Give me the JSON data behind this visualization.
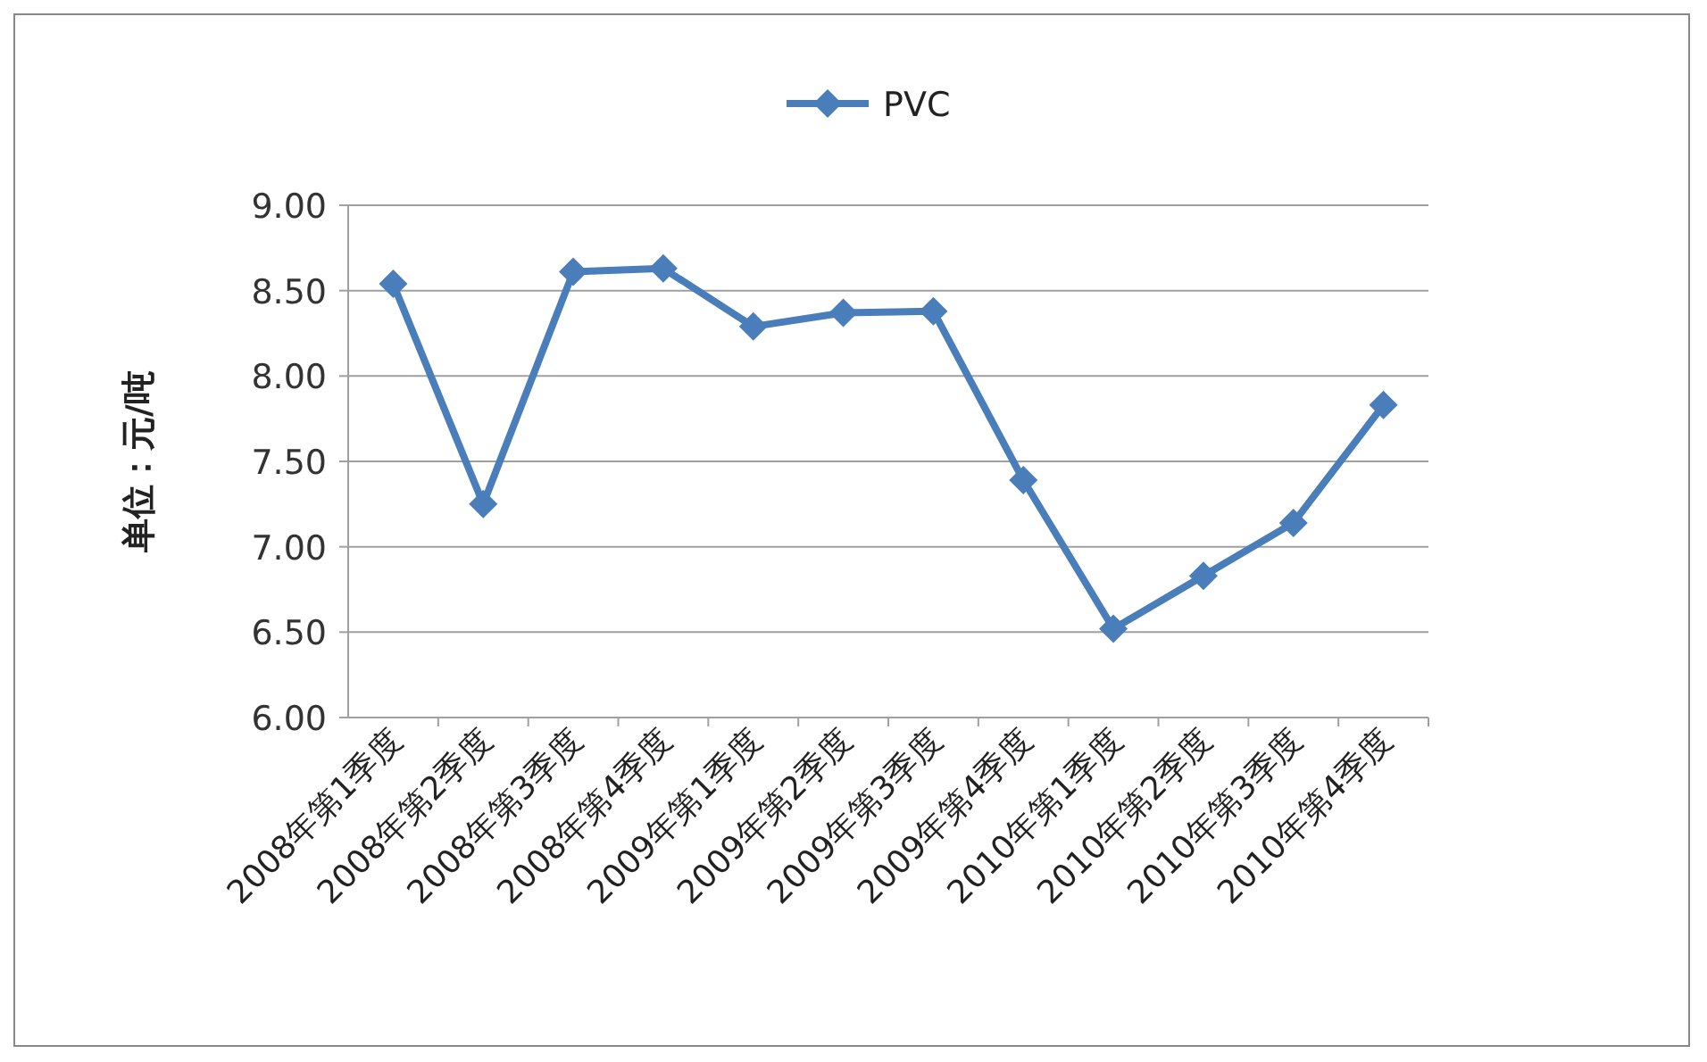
{
  "chart_data": {
    "type": "line",
    "ylabel": "单位：元/吨",
    "categories": [
      "2008年第1季度",
      "2008年第2季度",
      "2008年第3季度",
      "2008年第4季度",
      "2009年第1季度",
      "2009年第2季度",
      "2009年第3季度",
      "2009年第4季度",
      "2010年第1季度",
      "2010年第2季度",
      "2010年第3季度",
      "2010年第4季度"
    ],
    "series": [
      {
        "name": "PVC",
        "color": "#4a7ebb",
        "values": [
          8.54,
          7.25,
          8.61,
          8.63,
          8.29,
          8.37,
          8.38,
          7.39,
          6.52,
          6.83,
          7.14,
          7.83
        ]
      }
    ],
    "ylim": [
      6,
      9
    ],
    "yticks": [
      {
        "value": 6,
        "label": "6.00"
      },
      {
        "value": 6.5,
        "label": "6.50"
      },
      {
        "value": 7,
        "label": "7.00"
      },
      {
        "value": 7.5,
        "label": "7.50"
      },
      {
        "value": 8,
        "label": "8.00"
      },
      {
        "value": 8.5,
        "label": "8.50"
      },
      {
        "value": 9,
        "label": "9.00"
      }
    ],
    "grid": "y",
    "legend": "top",
    "marker": "diamond",
    "line_style": "solid"
  }
}
